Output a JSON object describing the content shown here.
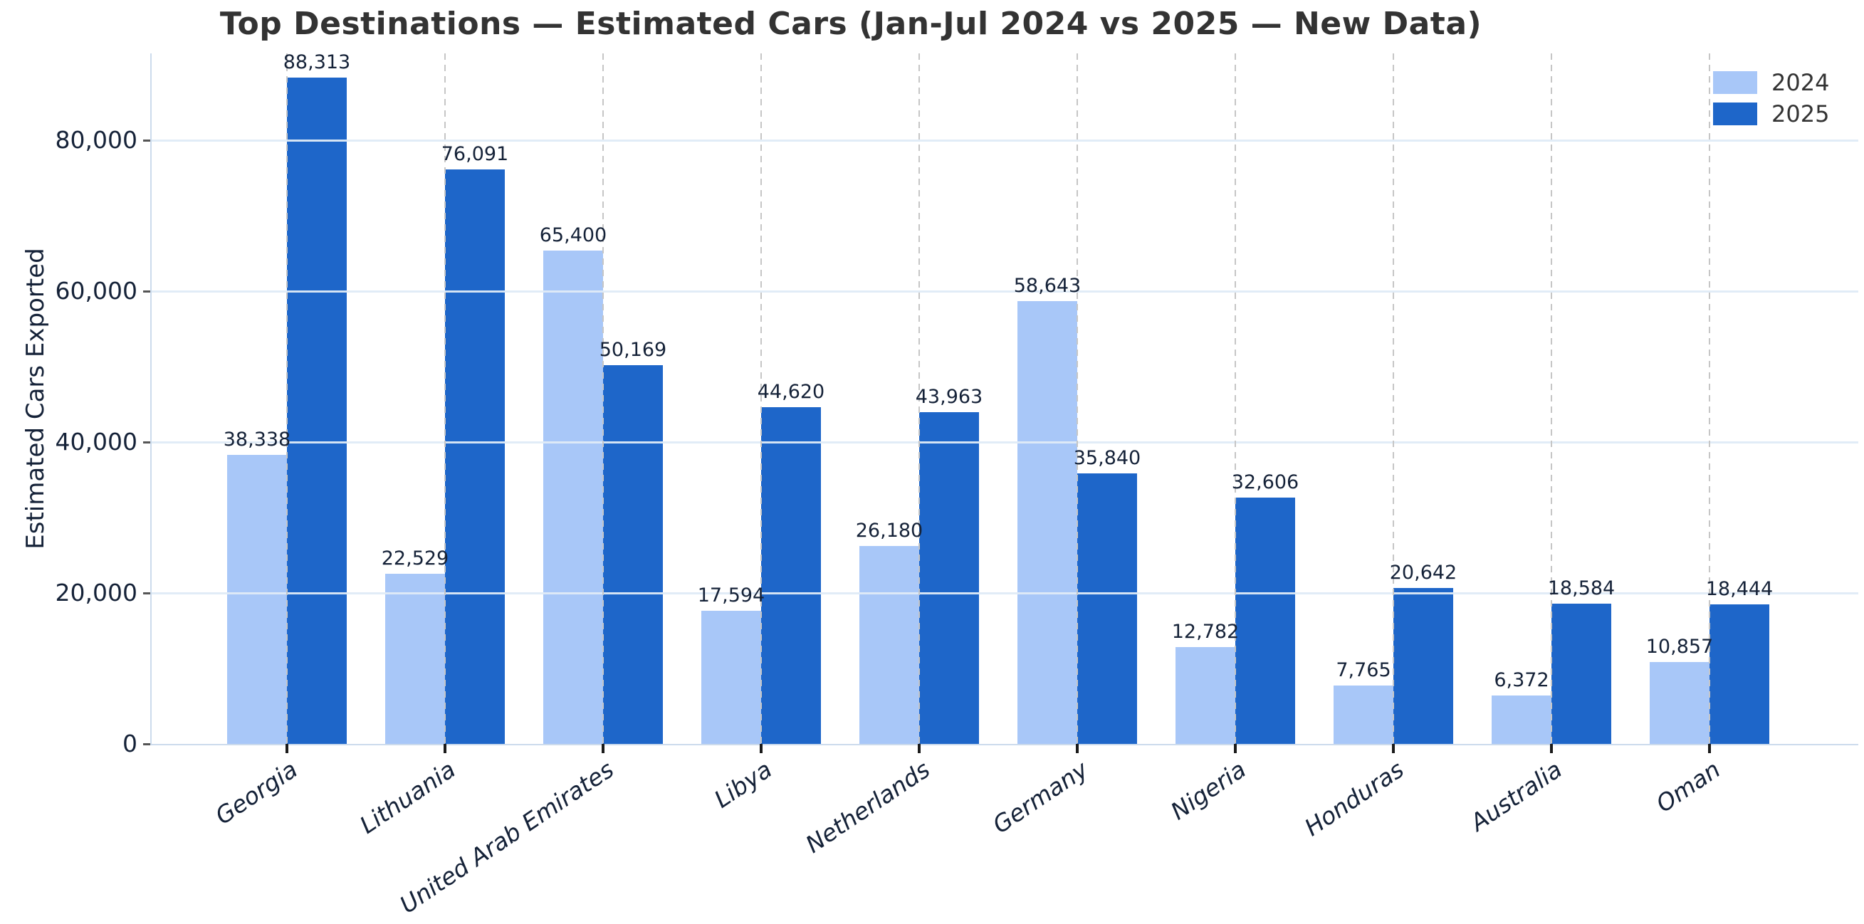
{
  "chart_data": {
    "type": "bar",
    "title": "Top Destinations — Estimated Cars (Jan-Jul 2024 vs 2025 — New Data)",
    "ylabel": "Estimated Cars Exported",
    "xlabel": "",
    "categories": [
      "Georgia",
      "Lithuania",
      "United Arab Emirates",
      "Libya",
      "Netherlands",
      "Germany",
      "Nigeria",
      "Honduras",
      "Australia",
      "Oman"
    ],
    "series": [
      {
        "name": "2024",
        "color": "#a8c7f8",
        "values": [
          38338,
          22529,
          65400,
          17594,
          26180,
          58643,
          12782,
          7765,
          6372,
          10857
        ]
      },
      {
        "name": "2025",
        "color": "#1e66c9",
        "values": [
          88313,
          76091,
          50169,
          44620,
          43963,
          35840,
          32606,
          20642,
          18584,
          18444
        ]
      }
    ],
    "bar_value_labels": [
      "38,338",
      "88,313",
      "22,529",
      "76,091",
      "65,400",
      "50,169",
      "17,594",
      "44,620",
      "26,180",
      "43,963",
      "58,643",
      "35,840",
      "12,782",
      "32,606",
      "7,765",
      "20,642",
      "6,372",
      "18,584",
      "10,857",
      "18,444"
    ],
    "yticks": [
      0,
      20000,
      40000,
      60000,
      80000
    ],
    "ytick_labels": [
      "0",
      "20,000",
      "40,000",
      "60,000",
      "80,000"
    ],
    "ylim": [
      0,
      91500
    ],
    "grid": {
      "horizontal": true,
      "vertical": "dashed"
    },
    "legend_position": "upper-right"
  },
  "legend": {
    "items": [
      {
        "label": "2024",
        "color": "#a8c7f8"
      },
      {
        "label": "2025",
        "color": "#1e66c9"
      }
    ]
  }
}
